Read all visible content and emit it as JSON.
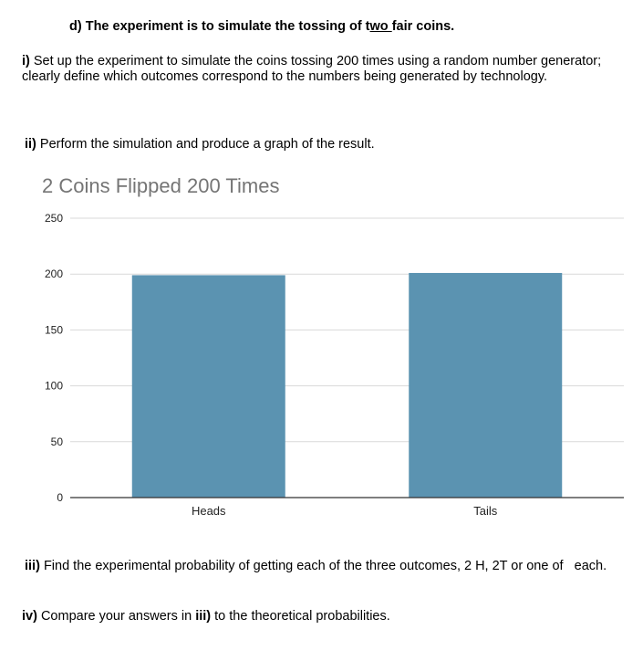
{
  "heading": {
    "prefix": "d) The experiment is to simulate the tossing of t",
    "underlined": "wo ",
    "suffix": "fair coins."
  },
  "part_i": {
    "label": "i)",
    "text": " Set up the experiment to simulate the coins tossing 200 times using a random number generator; clearly define which outcomes correspond to the numbers being generated by technology."
  },
  "part_ii": {
    "label": "ii)",
    "text": " Perform the simulation and produce a graph of the result."
  },
  "part_iii": {
    "label": "iii)",
    "text": " Find the experimental probability of getting each of the three outcomes, 2 H, 2T or one of   each."
  },
  "part_iv": {
    "label": "iv)",
    "text_before": " Compare your answers in ",
    "ref": "iii)",
    "text_after": " to the theoretical probabilities."
  },
  "chart_data": {
    "type": "bar",
    "title": "2 Coins Flipped 200 Times",
    "categories": [
      "Heads",
      "Tails"
    ],
    "values": [
      199,
      201
    ],
    "ylim": [
      0,
      250
    ],
    "yticks": [
      0,
      50,
      100,
      150,
      200,
      250
    ],
    "xlabel": "",
    "ylabel": "",
    "grid": true,
    "bar_color": "#5b93b1",
    "gridline_color": "#d9d9d9",
    "axis_color": "#333333"
  }
}
